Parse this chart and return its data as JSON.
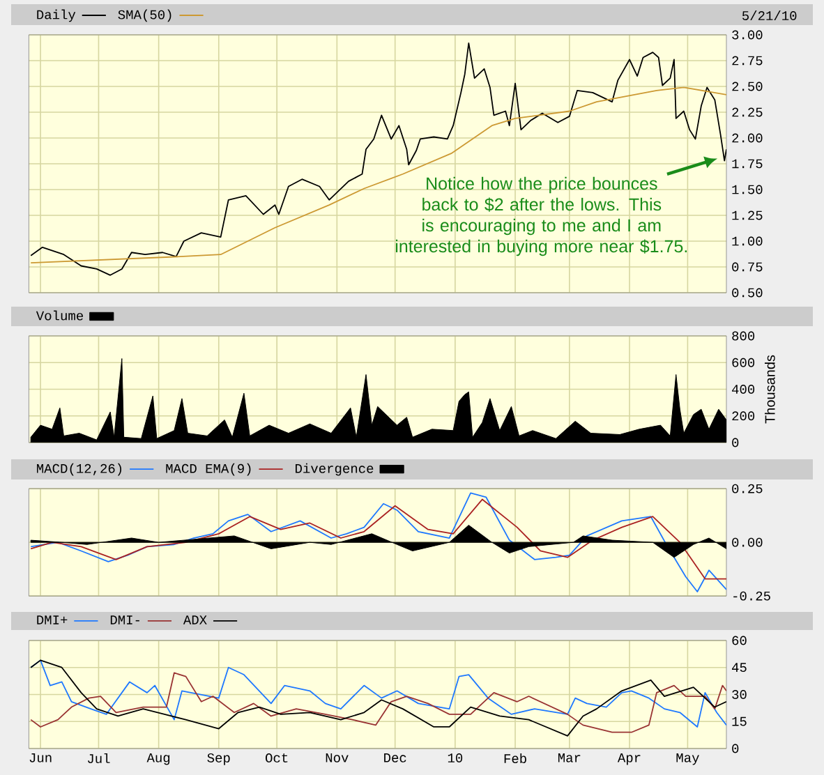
{
  "chart_data": [
    {
      "type": "line",
      "xlim": [
        "2009-05-26",
        "2010-05-21"
      ],
      "xticks": [
        {
          "value": "2009-06-01",
          "label": null
        },
        {
          "value": "2009-07-01",
          "label": null
        },
        {
          "value": "2009-08-01",
          "label": null
        },
        {
          "value": "2009-09-01",
          "label": null
        },
        {
          "value": "2009-10-01",
          "label": null
        },
        {
          "value": "2009-11-01",
          "label": null
        },
        {
          "value": "2009-12-01",
          "label": null
        },
        {
          "value": "2010-01-01",
          "label": null
        },
        {
          "value": "2010-02-01",
          "label": null
        },
        {
          "value": "2010-03-01",
          "label": null
        },
        {
          "value": "2010-04-01",
          "label": null
        },
        {
          "value": "2010-05-01",
          "label": null
        }
      ],
      "ylim": [
        0.5,
        3.0
      ],
      "yticks": [
        {
          "value": 0.5,
          "label": "0.50"
        },
        {
          "value": 0.75,
          "label": "0.75"
        },
        {
          "value": 1.0,
          "label": "1.00"
        },
        {
          "value": 1.25,
          "label": "1.25"
        },
        {
          "value": 1.5,
          "label": "1.50"
        },
        {
          "value": 1.75,
          "label": "1.75"
        },
        {
          "value": 2.0,
          "label": "2.00"
        },
        {
          "value": 2.25,
          "label": "2.25"
        },
        {
          "value": 2.5,
          "label": "2.50"
        },
        {
          "value": 2.75,
          "label": "2.75"
        },
        {
          "value": 3.0,
          "label": "3.00"
        }
      ],
      "tick_labels": "y",
      "grid": true,
      "legend": "top left",
      "annotations": [
        "5/21/10",
        "Notice how the price bounces back to $2 after the lows. This is encouraging to me and I am interested in buying more near $1.75."
      ],
      "series": [
        {
          "name": "Daily",
          "color": "#000000",
          "x": [
            "2009-05-27",
            "2009-06-02",
            "2009-06-13",
            "2009-06-22",
            "2009-06-30",
            "2009-07-07",
            "2009-07-13",
            "2009-07-18",
            "2009-07-25",
            "2009-08-03",
            "2009-08-10",
            "2009-08-14",
            "2009-08-23",
            "2009-09-02",
            "2009-09-06",
            "2009-09-15",
            "2009-09-24",
            "2009-09-30",
            "2009-10-02",
            "2009-10-07",
            "2009-10-14",
            "2009-10-23",
            "2009-10-28",
            "2009-11-07",
            "2009-11-14",
            "2009-11-16",
            "2009-11-20",
            "2009-11-24",
            "2009-11-29",
            "2009-12-03",
            "2009-12-07",
            "2009-12-08",
            "2009-12-12",
            "2009-12-14",
            "2009-12-21",
            "2009-12-28",
            "2009-12-31",
            "2010-01-04",
            "2010-01-06",
            "2010-01-08",
            "2010-01-11",
            "2010-01-16",
            "2010-01-19",
            "2010-01-21",
            "2010-01-27",
            "2010-01-29",
            "2010-02-01",
            "2010-02-04",
            "2010-02-09",
            "2010-02-15",
            "2010-02-23",
            "2010-03-01",
            "2010-03-05",
            "2010-03-13",
            "2010-03-23",
            "2010-03-26",
            "2010-04-01",
            "2010-04-05",
            "2010-04-08",
            "2010-04-13",
            "2010-04-16",
            "2010-04-18",
            "2010-04-22",
            "2010-04-24",
            "2010-04-25",
            "2010-04-29",
            "2010-05-02",
            "2010-05-05",
            "2010-05-08",
            "2010-05-11",
            "2010-05-15",
            "2010-05-18",
            "2010-05-20",
            "2010-05-21"
          ],
          "values": [
            0.86,
            0.94,
            0.87,
            0.76,
            0.73,
            0.67,
            0.73,
            0.89,
            0.87,
            0.89,
            0.85,
            1.0,
            1.08,
            1.04,
            1.4,
            1.44,
            1.26,
            1.35,
            1.26,
            1.53,
            1.6,
            1.53,
            1.4,
            1.58,
            1.65,
            1.89,
            1.99,
            2.22,
            1.99,
            2.12,
            1.89,
            1.74,
            1.88,
            1.99,
            2.01,
            1.99,
            2.12,
            2.44,
            2.62,
            2.92,
            2.58,
            2.67,
            2.49,
            2.22,
            2.26,
            2.12,
            2.53,
            2.08,
            2.17,
            2.24,
            2.15,
            2.21,
            2.46,
            2.44,
            2.35,
            2.56,
            2.76,
            2.6,
            2.78,
            2.83,
            2.78,
            2.51,
            2.58,
            2.76,
            2.19,
            2.26,
            2.08,
            1.99,
            2.31,
            2.49,
            2.37,
            2.03,
            1.78,
            1.89
          ]
        },
        {
          "name": "SMA(50)",
          "color": "#cc9933",
          "x": [
            "2009-05-27",
            "2009-08-12",
            "2009-09-02",
            "2009-09-30",
            "2009-10-28",
            "2009-11-15",
            "2009-12-05",
            "2009-12-30",
            "2010-01-20",
            "2010-02-01",
            "2010-03-01",
            "2010-03-15",
            "2010-04-15",
            "2010-04-29",
            "2010-05-21"
          ],
          "values": [
            0.79,
            0.85,
            0.87,
            1.13,
            1.35,
            1.51,
            1.65,
            1.85,
            2.12,
            2.19,
            2.26,
            2.35,
            2.46,
            2.49,
            2.42
          ]
        }
      ]
    },
    {
      "type": "area",
      "xlim": [
        "2009-05-26",
        "2010-05-21"
      ],
      "xticks": [
        {
          "value": "2009-06-01",
          "label": null
        },
        {
          "value": "2009-07-01",
          "label": null
        },
        {
          "value": "2009-08-01",
          "label": null
        },
        {
          "value": "2009-09-01",
          "label": null
        },
        {
          "value": "2009-10-01",
          "label": null
        },
        {
          "value": "2009-11-01",
          "label": null
        },
        {
          "value": "2009-12-01",
          "label": null
        },
        {
          "value": "2010-01-01",
          "label": null
        },
        {
          "value": "2010-02-01",
          "label": null
        },
        {
          "value": "2010-03-01",
          "label": null
        },
        {
          "value": "2010-04-01",
          "label": null
        },
        {
          "value": "2010-05-01",
          "label": null
        }
      ],
      "ylim": [
        0,
        800
      ],
      "yticks": [
        0,
        200,
        400,
        600,
        800
      ],
      "ylabel": "Thousands",
      "tick_labels": "y",
      "grid": true,
      "legend": "top left",
      "series": [
        {
          "name": "Volume",
          "color": "#000000",
          "x": [
            "2009-05-27",
            "2009-06-01",
            "2009-06-07",
            "2009-06-11",
            "2009-06-13",
            "2009-06-21",
            "2009-06-30",
            "2009-07-07",
            "2009-07-09",
            "2009-07-13",
            "2009-07-14",
            "2009-07-23",
            "2009-07-29",
            "2009-07-31",
            "2009-08-09",
            "2009-08-13",
            "2009-08-16",
            "2009-08-26",
            "2009-09-04",
            "2009-09-08",
            "2009-09-14",
            "2009-09-17",
            "2009-09-27",
            "2009-10-07",
            "2009-10-18",
            "2009-10-29",
            "2009-11-08",
            "2009-11-11",
            "2009-11-16",
            "2009-11-19",
            "2009-11-22",
            "2009-12-02",
            "2009-12-07",
            "2009-12-10",
            "2009-12-20",
            "2009-12-31",
            "2010-01-03",
            "2010-01-06",
            "2010-01-08",
            "2010-01-10",
            "2010-01-15",
            "2010-01-19",
            "2010-01-24",
            "2010-01-30",
            "2010-02-03",
            "2010-02-10",
            "2010-02-22",
            "2010-03-04",
            "2010-03-12",
            "2010-03-27",
            "2010-04-06",
            "2010-04-17",
            "2010-04-22",
            "2010-04-25",
            "2010-04-27",
            "2010-04-29",
            "2010-05-04",
            "2010-05-08",
            "2010-05-12",
            "2010-05-17",
            "2010-05-21"
          ],
          "values": [
            40,
            130,
            100,
            260,
            50,
            70,
            20,
            230,
            40,
            630,
            40,
            30,
            350,
            30,
            90,
            330,
            70,
            50,
            170,
            40,
            370,
            50,
            130,
            70,
            140,
            70,
            260,
            40,
            510,
            130,
            270,
            130,
            190,
            40,
            100,
            90,
            310,
            360,
            380,
            40,
            150,
            330,
            90,
            270,
            50,
            90,
            30,
            160,
            70,
            60,
            100,
            130,
            50,
            510,
            250,
            70,
            210,
            250,
            100,
            250,
            170
          ]
        }
      ]
    },
    {
      "type": "line",
      "xlim": [
        "2009-05-26",
        "2010-05-21"
      ],
      "xticks": [
        {
          "value": "2009-06-01",
          "label": null
        },
        {
          "value": "2009-07-01",
          "label": null
        },
        {
          "value": "2009-08-01",
          "label": null
        },
        {
          "value": "2009-09-01",
          "label": null
        },
        {
          "value": "2009-10-01",
          "label": null
        },
        {
          "value": "2009-11-01",
          "label": null
        },
        {
          "value": "2009-12-01",
          "label": null
        },
        {
          "value": "2010-01-01",
          "label": null
        },
        {
          "value": "2010-02-01",
          "label": null
        },
        {
          "value": "2010-03-01",
          "label": null
        },
        {
          "value": "2010-04-01",
          "label": null
        },
        {
          "value": "2010-05-01",
          "label": null
        }
      ],
      "ylim": [
        -0.25,
        0.25
      ],
      "yticks": [
        {
          "value": -0.25,
          "label": "-0.25"
        },
        {
          "value": 0,
          "label": "0.00"
        },
        {
          "value": 0.25,
          "label": "0.25"
        }
      ],
      "tick_labels": "y",
      "grid": true,
      "legend": "top left",
      "series": [
        {
          "name": "MACD(12,26)",
          "color": "#1e78ff",
          "x": [
            "2009-05-27",
            "2009-06-10",
            "2009-06-22",
            "2009-07-06",
            "2009-07-16",
            "2009-07-26",
            "2009-08-09",
            "2009-08-19",
            "2009-08-29",
            "2009-09-06",
            "2009-09-16",
            "2009-09-28",
            "2009-10-13",
            "2009-10-29",
            "2009-11-06",
            "2009-11-15",
            "2009-11-25",
            "2009-12-02",
            "2009-12-13",
            "2009-12-29",
            "2010-01-09",
            "2010-01-17",
            "2010-01-29",
            "2010-02-11",
            "2010-02-22",
            "2010-03-01",
            "2010-03-10",
            "2010-03-28",
            "2010-04-12",
            "2010-04-20",
            "2010-04-30",
            "2010-05-06",
            "2010-05-12",
            "2010-05-21"
          ],
          "values": [
            -0.02,
            0.0,
            -0.04,
            -0.09,
            -0.06,
            -0.02,
            -0.01,
            0.02,
            0.04,
            0.1,
            0.13,
            0.05,
            0.1,
            0.02,
            0.04,
            0.07,
            0.18,
            0.15,
            0.05,
            0.02,
            0.23,
            0.21,
            0.01,
            -0.08,
            -0.07,
            -0.06,
            0.03,
            0.1,
            0.12,
            -0.01,
            -0.16,
            -0.23,
            -0.13,
            -0.22
          ]
        },
        {
          "name": "MACD EMA(9)",
          "color": "#aa2222",
          "x": [
            "2009-05-27",
            "2009-06-07",
            "2009-06-22",
            "2009-07-10",
            "2009-07-26",
            "2009-08-15",
            "2009-09-01",
            "2009-09-17",
            "2009-10-03",
            "2009-10-18",
            "2009-11-03",
            "2009-11-15",
            "2009-12-01",
            "2009-12-18",
            "2009-12-31",
            "2010-01-15",
            "2010-02-02",
            "2010-02-14",
            "2010-02-28",
            "2010-03-13",
            "2010-03-28",
            "2010-04-13",
            "2010-04-27",
            "2010-05-10",
            "2010-05-21"
          ],
          "values": [
            -0.03,
            0.0,
            -0.02,
            -0.08,
            -0.02,
            0.0,
            0.04,
            0.12,
            0.06,
            0.09,
            0.02,
            0.05,
            0.17,
            0.06,
            0.04,
            0.2,
            0.07,
            -0.04,
            -0.07,
            0.01,
            0.07,
            0.12,
            0.0,
            -0.17,
            -0.17
          ]
        },
        {
          "name": "Divergence",
          "type": "area",
          "color": "#000000",
          "x": [
            "2009-05-27",
            "2009-06-12",
            "2009-06-25",
            "2009-07-18",
            "2009-08-01",
            "2009-09-09",
            "2009-09-28",
            "2009-10-18",
            "2009-10-29",
            "2009-11-19",
            "2009-12-02",
            "2009-12-10",
            "2009-12-29",
            "2010-01-08",
            "2010-01-20",
            "2010-01-29",
            "2010-02-08",
            "2010-03-03",
            "2010-03-08",
            "2010-03-23",
            "2010-04-13",
            "2010-04-24",
            "2010-05-04",
            "2010-05-12",
            "2010-05-21"
          ],
          "values": [
            0.01,
            0.0,
            -0.01,
            0.02,
            0.0,
            0.03,
            -0.03,
            0.0,
            -0.01,
            0.04,
            -0.01,
            -0.04,
            0.0,
            0.08,
            0.0,
            -0.05,
            -0.02,
            0.0,
            0.03,
            0.01,
            0.0,
            -0.07,
            -0.01,
            0.02,
            -0.03
          ]
        }
      ]
    },
    {
      "type": "line",
      "xlim": [
        "2009-05-26",
        "2010-05-21"
      ],
      "xticks": [
        {
          "value": "2009-06-01",
          "label": "Jun"
        },
        {
          "value": "2009-07-01",
          "label": "Jul"
        },
        {
          "value": "2009-08-01",
          "label": "Aug"
        },
        {
          "value": "2009-09-01",
          "label": "Sep"
        },
        {
          "value": "2009-10-01",
          "label": "Oct"
        },
        {
          "value": "2009-11-01",
          "label": "Nov"
        },
        {
          "value": "2009-12-01",
          "label": "Dec"
        },
        {
          "value": "2010-01-01",
          "label": "10"
        },
        {
          "value": "2010-02-01",
          "label": "Feb"
        },
        {
          "value": "2010-03-01",
          "label": "Mar"
        },
        {
          "value": "2010-04-01",
          "label": "Apr"
        },
        {
          "value": "2010-05-01",
          "label": "May"
        }
      ],
      "ylim": [
        0,
        60
      ],
      "yticks": [
        0,
        15,
        30,
        45,
        60
      ],
      "grid": true,
      "legend": "top left",
      "series": [
        {
          "name": "DMI+",
          "color": "#1e78ff",
          "x": [
            "2009-05-27",
            "2009-06-01",
            "2009-06-06",
            "2009-06-12",
            "2009-06-17",
            "2009-06-27",
            "2009-07-05",
            "2009-07-17",
            "2009-07-26",
            "2009-07-30",
            "2009-08-09",
            "2009-08-13",
            "2009-09-01",
            "2009-09-06",
            "2009-09-14",
            "2009-09-28",
            "2009-10-05",
            "2009-10-18",
            "2009-10-26",
            "2009-11-03",
            "2009-11-15",
            "2009-11-24",
            "2009-12-02",
            "2009-12-13",
            "2009-12-29",
            "2010-01-03",
            "2010-01-08",
            "2010-01-18",
            "2010-01-30",
            "2010-02-11",
            "2010-02-28",
            "2010-03-04",
            "2010-03-10",
            "2010-03-20",
            "2010-03-28",
            "2010-04-02",
            "2010-04-11",
            "2010-04-19",
            "2010-04-27",
            "2010-05-06",
            "2010-05-10",
            "2010-05-16",
            "2010-05-21"
          ],
          "values": [
            45,
            49,
            35,
            37,
            26,
            22,
            19,
            37,
            31,
            35,
            16,
            32,
            28,
            45,
            41,
            25,
            35,
            32,
            25,
            22,
            35,
            28,
            32,
            25,
            22,
            40,
            41,
            28,
            19,
            22,
            19,
            28,
            25,
            23,
            31,
            32,
            28,
            22,
            20,
            12,
            31,
            20,
            13
          ]
        },
        {
          "name": "DMI-",
          "color": "#993333",
          "x": [
            "2009-05-27",
            "2009-06-01",
            "2009-06-10",
            "2009-06-17",
            "2009-06-26",
            "2009-07-02",
            "2009-07-10",
            "2009-07-24",
            "2009-08-05",
            "2009-08-09",
            "2009-08-15",
            "2009-08-23",
            "2009-08-29",
            "2009-09-09",
            "2009-09-19",
            "2009-09-28",
            "2009-10-11",
            "2009-10-26",
            "2009-11-09",
            "2009-11-21",
            "2009-11-29",
            "2009-12-07",
            "2009-12-18",
            "2009-12-29",
            "2010-01-09",
            "2010-01-21",
            "2010-02-02",
            "2010-02-08",
            "2010-02-28",
            "2010-03-08",
            "2010-03-23",
            "2010-04-02",
            "2010-04-11",
            "2010-04-15",
            "2010-04-24",
            "2010-04-30",
            "2010-05-10",
            "2010-05-15",
            "2010-05-19",
            "2010-05-21"
          ],
          "values": [
            16,
            12,
            16,
            23,
            28,
            29,
            20,
            23,
            23,
            42,
            40,
            26,
            29,
            20,
            25,
            18,
            22,
            19,
            16,
            13,
            26,
            29,
            25,
            19,
            19,
            31,
            26,
            29,
            19,
            13,
            9,
            9,
            13,
            31,
            35,
            29,
            29,
            22,
            35,
            32
          ]
        },
        {
          "name": "ADX",
          "color": "#000000",
          "x": [
            "2009-05-27",
            "2009-06-01",
            "2009-06-12",
            "2009-06-22",
            "2009-06-30",
            "2009-07-11",
            "2009-07-24",
            "2009-08-04",
            "2009-08-15",
            "2009-09-01",
            "2009-09-11",
            "2009-09-22",
            "2009-10-03",
            "2009-10-18",
            "2009-11-03",
            "2009-11-15",
            "2009-11-24",
            "2009-12-05",
            "2009-12-21",
            "2009-12-29",
            "2010-01-09",
            "2010-01-24",
            "2010-02-08",
            "2010-02-28",
            "2010-03-08",
            "2010-03-15",
            "2010-03-28",
            "2010-04-12",
            "2010-04-19",
            "2010-05-04",
            "2010-05-15",
            "2010-05-21"
          ],
          "values": [
            45,
            49,
            45,
            31,
            22,
            18,
            22,
            19,
            16,
            11,
            20,
            23,
            19,
            20,
            16,
            20,
            27,
            22,
            12,
            12,
            23,
            18,
            16,
            7,
            18,
            22,
            32,
            38,
            29,
            34,
            23,
            26
          ]
        }
      ]
    }
  ]
}
